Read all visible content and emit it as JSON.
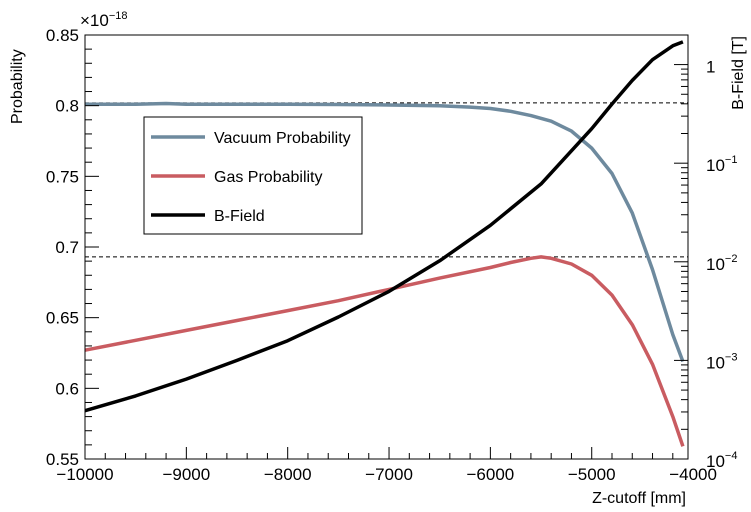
{
  "chart_data": {
    "type": "line",
    "xlabel": "Z-cutoff [mm]",
    "ylabel": "Probability",
    "y2label": "B-Field [T]",
    "y_multiplier": "×10",
    "y_multiplier_exp": "−18",
    "xlim": [
      -10000,
      -4050
    ],
    "ylim": [
      0.55,
      0.85
    ],
    "y2lim_log": [
      -4,
      0.3
    ],
    "y2scale": "log",
    "grid": false,
    "legend_placement": "upper-left",
    "x_ticks": [
      {
        "v": -10000,
        "label": "−10000"
      },
      {
        "v": -9000,
        "label": "−9000"
      },
      {
        "v": -8000,
        "label": "−8000"
      },
      {
        "v": -7000,
        "label": "−7000"
      },
      {
        "v": -6000,
        "label": "−6000"
      },
      {
        "v": -5000,
        "label": "−5000"
      },
      {
        "v": -4000,
        "label": "−4000"
      }
    ],
    "y_ticks": [
      {
        "v": 0.55,
        "label": "0.55"
      },
      {
        "v": 0.6,
        "label": "0.6"
      },
      {
        "v": 0.65,
        "label": "0.65"
      },
      {
        "v": 0.7,
        "label": "0.7"
      },
      {
        "v": 0.75,
        "label": "0.75"
      },
      {
        "v": 0.8,
        "label": "0.8"
      },
      {
        "v": 0.85,
        "label": "0.85"
      }
    ],
    "y2_ticks": [
      {
        "v": -4,
        "base": "10",
        "exp": "−4"
      },
      {
        "v": -3,
        "base": "10",
        "exp": "−3"
      },
      {
        "v": -2,
        "base": "10",
        "exp": "−2"
      },
      {
        "v": -1,
        "base": "10",
        "exp": "−1"
      },
      {
        "v": 0,
        "base": "1",
        "exp": ""
      }
    ],
    "reference_lines": [
      {
        "axis": "y",
        "value": 0.802,
        "style": "dashed"
      },
      {
        "axis": "y",
        "value": 0.693,
        "style": "dashed"
      }
    ],
    "series": [
      {
        "name": "Vacuum Probability",
        "color": "#6e8a9e",
        "axis": "left",
        "x": [
          -10000,
          -9500,
          -9200,
          -9000,
          -8500,
          -8000,
          -7500,
          -7000,
          -6500,
          -6200,
          -6000,
          -5800,
          -5600,
          -5400,
          -5200,
          -5000,
          -4800,
          -4600,
          -4400,
          -4200,
          -4100
        ],
        "y": [
          0.801,
          0.801,
          0.8015,
          0.801,
          0.801,
          0.801,
          0.8008,
          0.8005,
          0.8,
          0.799,
          0.798,
          0.796,
          0.793,
          0.789,
          0.782,
          0.77,
          0.752,
          0.724,
          0.684,
          0.638,
          0.619
        ]
      },
      {
        "name": "Gas Probability",
        "color": "#c95c61",
        "axis": "left",
        "x": [
          -10000,
          -9500,
          -9000,
          -8500,
          -8000,
          -7500,
          -7000,
          -6500,
          -6000,
          -5800,
          -5600,
          -5500,
          -5400,
          -5200,
          -5000,
          -4800,
          -4600,
          -4400,
          -4200,
          -4100
        ],
        "y": [
          0.627,
          0.634,
          0.641,
          0.648,
          0.655,
          0.662,
          0.67,
          0.678,
          0.6855,
          0.689,
          0.692,
          0.693,
          0.692,
          0.688,
          0.68,
          0.666,
          0.645,
          0.617,
          0.58,
          0.559
        ]
      },
      {
        "name": "B-Field",
        "color": "#000000",
        "axis": "right",
        "x": [
          -10000,
          -9500,
          -9000,
          -8500,
          -8000,
          -7500,
          -7000,
          -6500,
          -6000,
          -5500,
          -5000,
          -4800,
          -4600,
          -4400,
          -4200,
          -4100
        ],
        "y_log10": [
          -3.51,
          -3.36,
          -3.19,
          -3.0,
          -2.8,
          -2.56,
          -2.3,
          -1.99,
          -1.63,
          -1.21,
          -0.65,
          -0.4,
          -0.16,
          0.05,
          0.19,
          0.23
        ]
      }
    ]
  }
}
